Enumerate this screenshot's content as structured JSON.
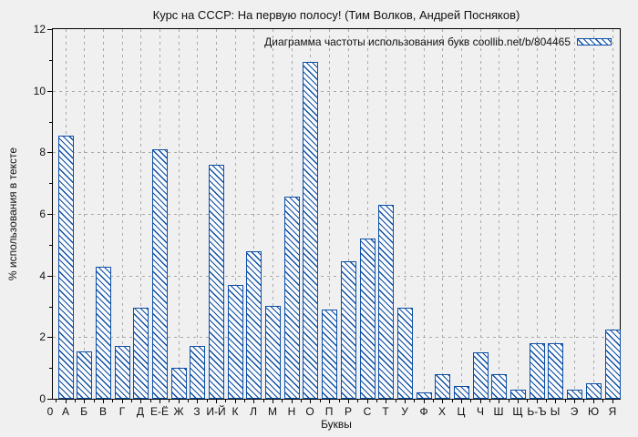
{
  "page": {
    "background": "#f0f0f0"
  },
  "colors": {
    "bar_line": "#0d4fa6",
    "bar_fill": "#fbfbfb",
    "grid": "#a9a9a9",
    "axis": "#000000",
    "background": "#f0f0f0",
    "text": "#111111"
  },
  "legend": {
    "label": "Диаграмма частоты использования букв coollib.net/b/804465",
    "swatch_icon": "hatched-bar-swatch"
  },
  "chart_data": {
    "type": "bar",
    "title": "Курс на СССР: На первую полосу! (Тим Волков, Андрей Посняков)",
    "xlabel": "Буквы",
    "ylabel": "% использования в тексте",
    "x_origin_tick_label": "0",
    "categories": [
      "А",
      "Б",
      "В",
      "Г",
      "Д",
      "Е-Ё",
      "Ж",
      "З",
      "И-Й",
      "К",
      "Л",
      "М",
      "Н",
      "О",
      "П",
      "Р",
      "С",
      "Т",
      "У",
      "Ф",
      "Х",
      "Ц",
      "Ч",
      "Ш",
      "Щ",
      "Ь-Ъ",
      "Ы",
      "Э",
      "Ю",
      "Я"
    ],
    "values": [
      8.55,
      1.55,
      4.3,
      1.7,
      2.95,
      8.1,
      1.0,
      1.7,
      7.6,
      3.7,
      4.8,
      3.0,
      6.55,
      10.95,
      2.9,
      4.45,
      5.2,
      6.3,
      2.95,
      0.2,
      0.8,
      0.4,
      1.5,
      0.8,
      0.3,
      1.8,
      1.8,
      0.3,
      0.5,
      2.25
    ],
    "ylim": [
      0,
      12
    ],
    "ytick_major_step": 2,
    "ytick_minor_step": 1,
    "ytick_labels": [
      "0",
      "2",
      "4",
      "6",
      "8",
      "10",
      "12"
    ],
    "grid": true,
    "grid_style": "dashed",
    "hatch": "diagonal-backslash",
    "legend_label": "Диаграмма частоты использования букв coollib.net/b/804465",
    "legend_position": "top-right-inside"
  }
}
